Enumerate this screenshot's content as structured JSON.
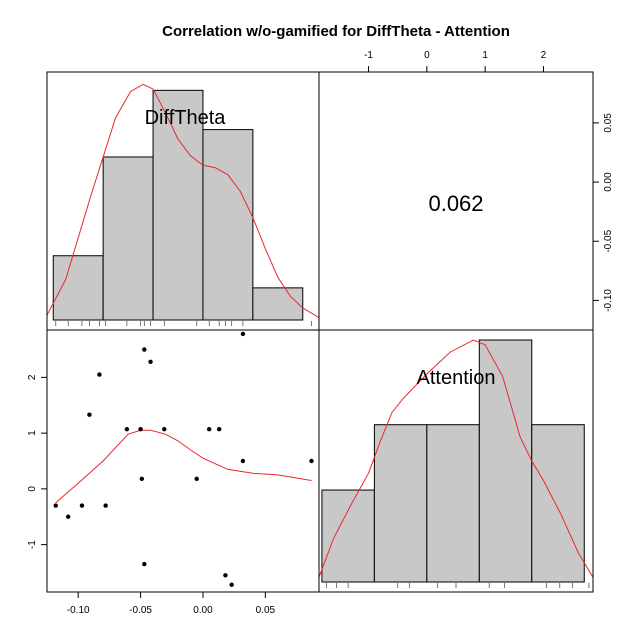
{
  "chart_data": {
    "type": "scatter",
    "title": "Correlation w/o-gamified for DiffTheta - Attention",
    "variables": [
      "DiffTheta",
      "Attention"
    ],
    "correlation_label": "0.062",
    "diff_theta_axis": {
      "range": [
        -0.125,
        0.093
      ],
      "ticks": [
        -0.1,
        -0.05,
        0.0,
        0.05
      ],
      "tick_labels": [
        "-0.10",
        "-0.05",
        "0.00",
        "0.05"
      ]
    },
    "attention_axis": {
      "range": [
        -1.85,
        2.85
      ],
      "ticks": [
        -1,
        0,
        1,
        2
      ],
      "tick_labels": [
        "-1",
        "0",
        "1",
        "2"
      ]
    },
    "histogram_difftheta": {
      "bin_edges": [
        -0.12,
        -0.08,
        -0.04,
        0.0,
        0.04,
        0.08
      ],
      "relative_heights": [
        0.27,
        0.685,
        0.965,
        0.8,
        0.135
      ]
    },
    "histogram_attention": {
      "bin_edges": [
        -1.8,
        -0.9,
        0.0,
        0.9,
        1.8,
        2.7
      ],
      "relative_heights": [
        0.38,
        0.65,
        0.65,
        1.0,
        0.65
      ]
    },
    "density_difftheta": {
      "x": [
        -0.125,
        -0.11,
        -0.09,
        -0.07,
        -0.058,
        -0.048,
        -0.04,
        -0.03,
        -0.02,
        -0.01,
        0.0,
        0.01,
        0.02,
        0.03,
        0.04,
        0.05,
        0.06,
        0.07,
        0.08,
        0.093
      ],
      "y": [
        0.02,
        0.17,
        0.52,
        0.85,
        0.96,
        0.99,
        0.97,
        0.87,
        0.76,
        0.69,
        0.65,
        0.64,
        0.61,
        0.54,
        0.43,
        0.3,
        0.18,
        0.1,
        0.05,
        0.01
      ]
    },
    "density_attention": {
      "x": [
        -1.85,
        -1.6,
        -1.3,
        -1.0,
        -0.8,
        -0.6,
        -0.4,
        0.0,
        0.4,
        0.8,
        1.0,
        1.3,
        1.6,
        1.8,
        2.0,
        2.3,
        2.6,
        2.85
      ],
      "y": [
        0.02,
        0.18,
        0.32,
        0.45,
        0.58,
        0.7,
        0.76,
        0.86,
        0.95,
        1.0,
        0.98,
        0.85,
        0.6,
        0.5,
        0.42,
        0.28,
        0.12,
        0.02
      ]
    },
    "points": [
      {
        "x": -0.118,
        "y": -0.3
      },
      {
        "x": -0.108,
        "y": -0.5
      },
      {
        "x": -0.097,
        "y": -0.3
      },
      {
        "x": -0.091,
        "y": 1.33
      },
      {
        "x": -0.083,
        "y": 2.05
      },
      {
        "x": -0.078,
        "y": -0.3
      },
      {
        "x": -0.061,
        "y": 1.07
      },
      {
        "x": -0.05,
        "y": 1.07
      },
      {
        "x": -0.049,
        "y": 0.18
      },
      {
        "x": -0.047,
        "y": 2.5
      },
      {
        "x": -0.047,
        "y": -1.35
      },
      {
        "x": -0.042,
        "y": 2.28
      },
      {
        "x": -0.031,
        "y": 1.07
      },
      {
        "x": -0.005,
        "y": 0.18
      },
      {
        "x": 0.005,
        "y": 1.07
      },
      {
        "x": 0.013,
        "y": 1.07
      },
      {
        "x": 0.018,
        "y": -1.55
      },
      {
        "x": 0.023,
        "y": -1.72
      },
      {
        "x": 0.032,
        "y": 0.5
      },
      {
        "x": 0.032,
        "y": 2.78
      },
      {
        "x": 0.087,
        "y": 0.5
      }
    ],
    "smooth_line": {
      "x": [
        -0.118,
        -0.1,
        -0.08,
        -0.06,
        -0.05,
        -0.042,
        -0.03,
        -0.02,
        -0.01,
        0.0,
        0.01,
        0.02,
        0.04,
        0.06,
        0.087
      ],
      "y": [
        -0.25,
        0.1,
        0.5,
        0.98,
        1.05,
        1.05,
        0.98,
        0.86,
        0.7,
        0.55,
        0.45,
        0.35,
        0.28,
        0.25,
        0.15
      ]
    },
    "rug_difftheta": [
      -0.118,
      -0.108,
      -0.097,
      -0.091,
      -0.083,
      -0.078,
      -0.061,
      -0.05,
      -0.047,
      -0.042,
      -0.031,
      -0.005,
      0.005,
      0.013,
      0.018,
      0.023,
      0.032,
      0.087
    ],
    "rug_attention": [
      -1.72,
      -1.55,
      -1.35,
      -0.5,
      -0.3,
      0.18,
      0.5,
      1.07,
      1.33,
      2.05,
      2.28,
      2.5,
      2.78
    ],
    "colors": {
      "histogram_fill": "#c8c8c8",
      "density_line": "#e8292f",
      "points": "#000000",
      "frame": "#000000"
    },
    "grid": false
  }
}
